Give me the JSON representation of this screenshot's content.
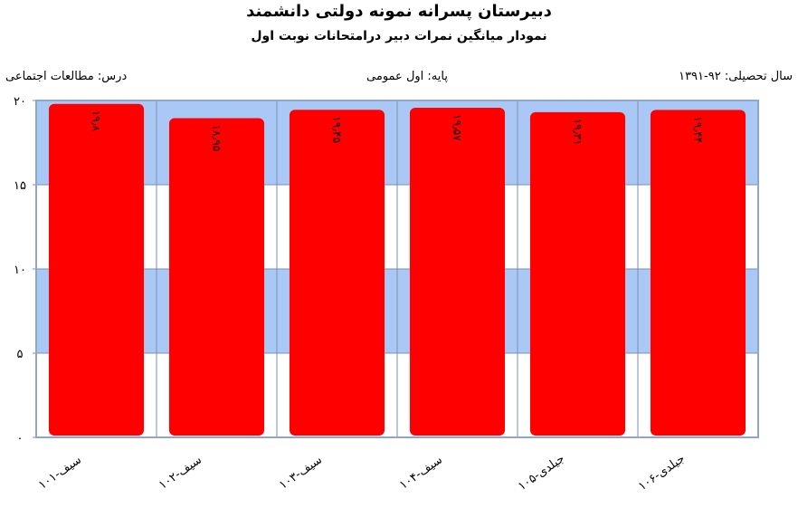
{
  "header": {
    "title": "دبیرستان پسرانه نمونه دولتی دانشمند",
    "subtitle": "نمودار میانگین نمرات دبیر درامتحانات نوبت اول",
    "course": "درس: مطالعات  اجتماعی",
    "grade": "پایه: اول عمومی",
    "year": "سال تحصیلی: ۹۲-۱۳۹۱"
  },
  "colors": {
    "bar": "#ff0000",
    "band": "#a9c8f5",
    "gridline": "#7a8fb0",
    "plot_border": "#8fa6c8"
  },
  "chart_data": {
    "type": "bar",
    "categories": [
      "سیف-۱۰۱",
      "سیف-۱۰۲",
      "سیف-۱۰۳",
      "سیف-۱۰۴",
      "جیلدی-۱۰۵",
      "جیلدی-۱۰۶"
    ],
    "values": [
      19.8,
      18.95,
      19.45,
      19.57,
      19.31,
      19.44
    ],
    "value_labels": [
      "۱۹٫۸",
      "۱۸٫۹۵",
      "۱۹٫۴۵",
      "۱۹٫۵۷",
      "۱۹٫۳۱",
      "۱۹٫۴۴"
    ],
    "ylim": [
      0,
      20
    ],
    "yticks": [
      0,
      5,
      10,
      15,
      20
    ],
    "ytick_labels": [
      "۰",
      "۵",
      "۱۰",
      "۱۵",
      "۲۰"
    ],
    "grid": true,
    "legend": "none"
  }
}
